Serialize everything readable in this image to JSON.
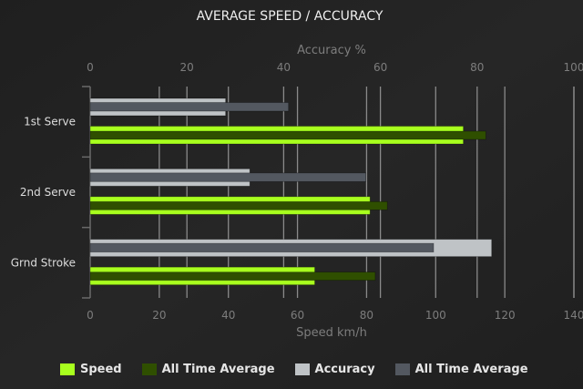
{
  "chart_data": {
    "type": "bar",
    "orientation": "horizontal",
    "title": "AVERAGE SPEED / ACCURACY",
    "categories": [
      "1st Serve",
      "2nd Serve",
      "Grnd Stroke"
    ],
    "top_axis": {
      "label": "Accuracy %",
      "range": [
        0,
        100
      ],
      "ticks": [
        0,
        20,
        40,
        60,
        80,
        100
      ]
    },
    "bottom_axis": {
      "label": "Speed km/h",
      "range": [
        0,
        140
      ],
      "ticks": [
        0,
        20,
        40,
        60,
        80,
        100,
        120,
        140
      ]
    },
    "grid": true,
    "legend_position": "bottom",
    "series": [
      {
        "name": "Speed",
        "axis": "speed",
        "color": "#a8ff1e",
        "values": [
          108,
          81,
          65
        ]
      },
      {
        "name": "All Time Average",
        "axis": "speed",
        "color": "#2f4f00",
        "values": [
          114.5,
          86,
          82.5
        ]
      },
      {
        "name": "Accuracy",
        "axis": "accuracy",
        "color": "#bfc3c6",
        "values": [
          28,
          33,
          83
        ]
      },
      {
        "name": "All Time Average",
        "axis": "accuracy",
        "color": "#535860",
        "values": [
          41,
          57,
          71
        ]
      }
    ]
  }
}
